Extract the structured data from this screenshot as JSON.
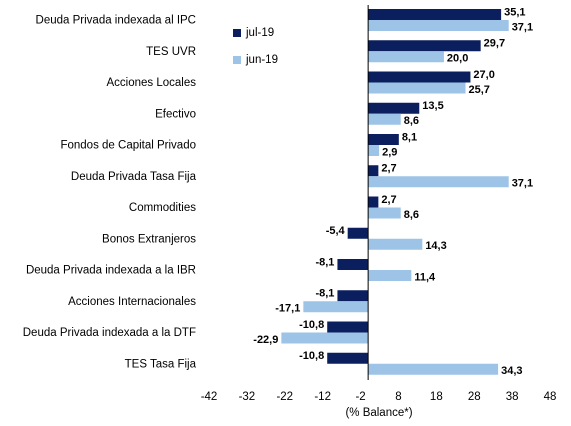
{
  "chart_data": {
    "type": "bar",
    "orientation": "horizontal",
    "categories": [
      "Deuda Privada indexada al IPC",
      "TES UVR",
      "Acciones Locales",
      "Efectivo",
      "Fondos de Capital Privado",
      "Deuda Privada Tasa Fija",
      "Commodities",
      "Bonos Extranjeros",
      "Deuda Privada indexada a la IBR",
      "Acciones Internacionales",
      "Deuda Privada indexada a la DTF",
      "TES Tasa Fija"
    ],
    "series": [
      {
        "name": "jul-19",
        "color": "#0b1f5e",
        "values": [
          35.1,
          29.7,
          27.0,
          13.5,
          8.1,
          2.7,
          2.7,
          -5.4,
          -8.1,
          -8.1,
          -10.8,
          -10.8
        ],
        "value_labels": [
          "35,1",
          "29,7",
          "27,0",
          "13,5",
          "8,1",
          "2,7",
          "2,7",
          "-5,4",
          "-8,1",
          "-8,1",
          "-10,8",
          "-10,8"
        ]
      },
      {
        "name": "jun-19",
        "color": "#9dc3e6",
        "values": [
          37.1,
          20.0,
          25.7,
          8.6,
          2.9,
          37.1,
          8.6,
          14.3,
          11.4,
          -17.1,
          -22.9,
          34.3
        ],
        "value_labels": [
          "37,1",
          "20,0",
          "25,7",
          "8,6",
          "2,9",
          "37,1",
          "8,6",
          "14,3",
          "11,4",
          "-17,1",
          "-22,9",
          "34,3"
        ]
      }
    ],
    "xlabel": "(% Balance*)",
    "xlim": [
      -42,
      48
    ],
    "xticks": [
      -42,
      -32,
      -22,
      -12,
      -2,
      8,
      18,
      28,
      38,
      48
    ],
    "grid": false,
    "legend": "upper left"
  }
}
